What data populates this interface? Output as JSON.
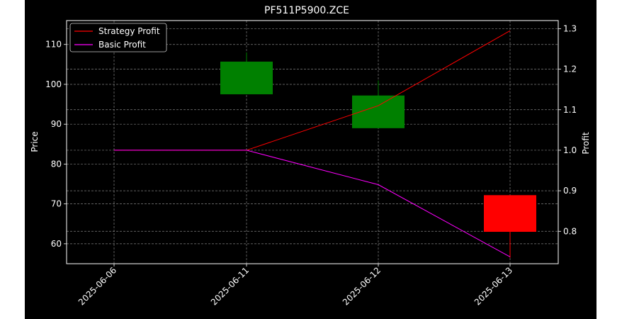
{
  "chart_data": {
    "type": "candlestick",
    "title": "PF511P5900.ZCE",
    "xlabel": "",
    "ylabel_left": "Price",
    "ylabel_right": "Profit",
    "categories": [
      "2025-06-06",
      "2025-06-11",
      "2025-06-12",
      "2025-06-13"
    ],
    "ylim_left": [
      55.0,
      116.0
    ],
    "ylim_right": [
      0.72,
      1.32
    ],
    "yticks_left": [
      60,
      70,
      80,
      90,
      100,
      110
    ],
    "yticks_right": [
      0.8,
      0.9,
      1.0,
      1.1,
      1.2,
      1.3
    ],
    "grid": true,
    "candles": [
      {
        "date": "2025-06-06",
        "open": null,
        "high": null,
        "low": null,
        "close": null
      },
      {
        "date": "2025-06-11",
        "open": 97.5,
        "high": 108.0,
        "low": 97.5,
        "close": 105.7
      },
      {
        "date": "2025-06-12",
        "open": 89.0,
        "high": 101.0,
        "low": 89.0,
        "close": 97.2
      },
      {
        "date": "2025-06-13",
        "open": 72.2,
        "high": 72.2,
        "low": 56.5,
        "close": 63.0
      }
    ],
    "series": [
      {
        "name": "Strategy Profit",
        "axis": "right",
        "color": "#ff0000",
        "values": [
          1.0,
          1.0,
          1.11,
          1.295
        ]
      },
      {
        "name": "Basic Profit",
        "axis": "right",
        "color": "#ff00ff",
        "values": [
          1.0,
          1.0,
          0.915,
          0.737
        ]
      }
    ],
    "legend_position": "top-left",
    "colors": {
      "up": "#008000",
      "down": "#ff0000",
      "background": "#000000",
      "grid": "#808080",
      "text": "#ffffff"
    }
  }
}
